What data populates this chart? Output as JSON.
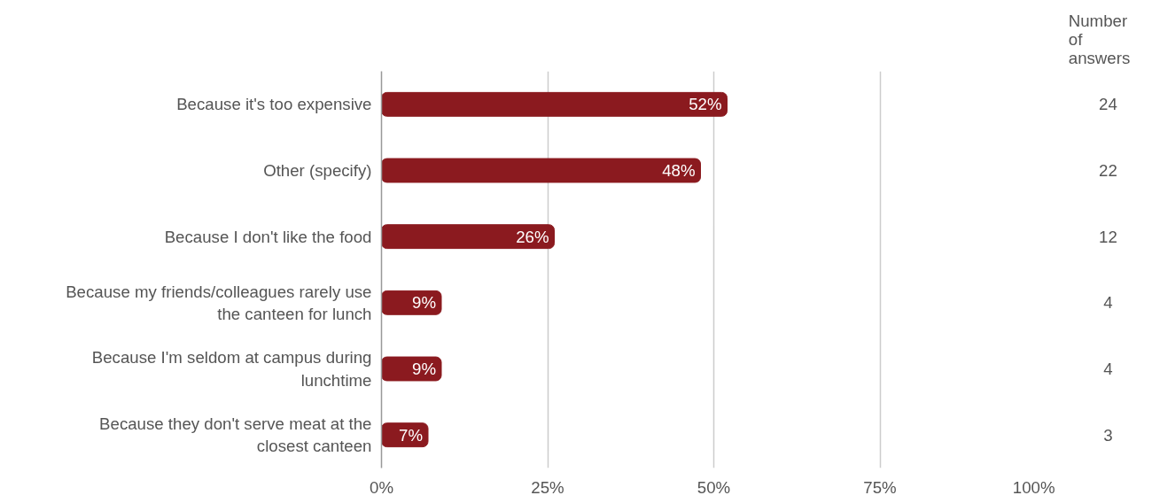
{
  "chart_data": {
    "type": "bar",
    "orientation": "horizontal",
    "categories": [
      "Because it's too expensive",
      "Other (specify)",
      "Because I don't like the food",
      "Because my friends/colleagues rarely use the canteen for lunch",
      "Because I'm seldom at campus during lunchtime",
      "Because they don't serve meat at the closest canteen"
    ],
    "values": [
      52,
      48,
      26,
      9,
      9,
      7
    ],
    "value_labels": [
      "52%",
      "48%",
      "26%",
      "9%",
      "9%",
      "7%"
    ],
    "color": "#8b1a1f",
    "xlim": [
      0,
      100
    ],
    "xticks": [
      {
        "value": 0,
        "label": "0%"
      },
      {
        "value": 25,
        "label": "25%"
      },
      {
        "value": 50,
        "label": "50%"
      },
      {
        "value": 75,
        "label": "75%"
      },
      {
        "value": 100,
        "label": "100%"
      }
    ],
    "grid": "x",
    "annotations": [
      "Number of answers",
      "24",
      "22",
      "12",
      "4",
      "4",
      "3"
    ]
  }
}
